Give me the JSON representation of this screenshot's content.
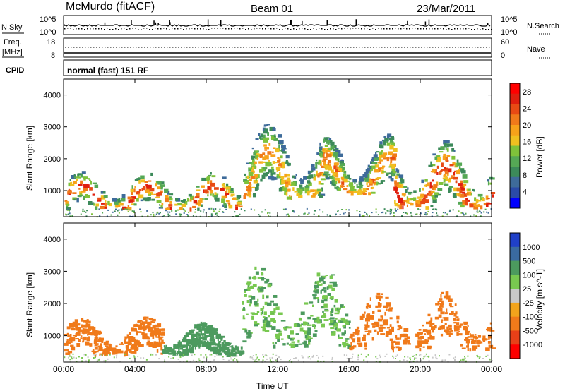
{
  "header": {
    "station": "McMurdo (fitACF)",
    "beam": "Beam 01",
    "date": "23/Mar/2011"
  },
  "top_panels": {
    "nsky_label": "N.Sky",
    "nsky_ticks": [
      "10^5",
      "10^0"
    ],
    "nsearch_label": "N.Search",
    "nsearch_ticks": [
      "10^5",
      "10^0"
    ],
    "freq_label": "Freq.",
    "freq_unit": "[MHz]",
    "freq_ticks": [
      "18",
      "8"
    ],
    "nave_label": "Nave",
    "nave_ticks": [
      "60",
      "0"
    ],
    "cpid_label": "CPID",
    "cpid_text": "normal (fast) 151 RF"
  },
  "colors": {
    "power": [
      "#0000ff",
      "#2a4aa8",
      "#3e6b9a",
      "#3c8a5a",
      "#55a855",
      "#7fc23a",
      "#f0c020",
      "#f7a21a",
      "#f07a1a",
      "#e84a14",
      "#e01e0e",
      "#ff0000"
    ],
    "velocity": [
      "#ff0000",
      "#e84018",
      "#f07a1a",
      "#f2a41c",
      "#c8c8c8",
      "#78c850",
      "#4c9a5e",
      "#3a6aa0",
      "#2040c8"
    ]
  },
  "chart_data": [
    {
      "type": "heatmap",
      "title": "",
      "ylabel": "Slant Range [km]",
      "xlabel": "",
      "x_ticks": [
        "00:00",
        "04:00",
        "08:00",
        "12:00",
        "16:00",
        "20:00",
        "00:00"
      ],
      "xlim_hours": [
        0,
        24
      ],
      "y_ticks": [
        1000,
        2000,
        3000,
        4000
      ],
      "ylim": [
        180,
        4500
      ],
      "colorbar": {
        "label": "Power [dB]",
        "ticks": [
          4,
          8,
          12,
          16,
          20,
          24,
          28
        ],
        "range": [
          0,
          30
        ]
      },
      "scatter_regions": [
        {
          "t0": 0.0,
          "t1": 10.0,
          "r0": 450,
          "r1": 1700,
          "peak_power": 28
        },
        {
          "t0": 10.0,
          "t1": 14.5,
          "r0": 800,
          "r1": 3300,
          "peak_power": 22
        },
        {
          "t0": 14.5,
          "t1": 18.5,
          "r0": 900,
          "r1": 2900,
          "peak_power": 24
        },
        {
          "t0": 18.5,
          "t1": 24.0,
          "r0": 500,
          "r1": 2700,
          "peak_power": 28
        }
      ]
    },
    {
      "type": "heatmap",
      "title": "",
      "ylabel": "Slant Range [km]",
      "xlabel": "Time UT",
      "x_ticks": [
        "00:00",
        "04:00",
        "08:00",
        "12:00",
        "16:00",
        "20:00",
        "00:00"
      ],
      "xlim_hours": [
        0,
        24
      ],
      "y_ticks": [
        1000,
        2000,
        3000,
        4000
      ],
      "ylim": [
        180,
        4500
      ],
      "colorbar": {
        "label": "Velocity [m s^-1]",
        "ticks": [
          1000,
          500,
          100,
          25,
          -25,
          -100,
          -500,
          -1000
        ]
      },
      "scatter_regions": [
        {
          "t0": 0.0,
          "t1": 5.5,
          "r0": 450,
          "r1": 1700,
          "velocity": -300
        },
        {
          "t0": 5.5,
          "t1": 10.0,
          "r0": 450,
          "r1": 1500,
          "velocity": 200
        },
        {
          "t0": 10.0,
          "t1": 16.0,
          "r0": 700,
          "r1": 3300,
          "velocity": 100
        },
        {
          "t0": 16.0,
          "t1": 24.0,
          "r0": 600,
          "r1": 2500,
          "velocity": -400
        }
      ]
    }
  ]
}
